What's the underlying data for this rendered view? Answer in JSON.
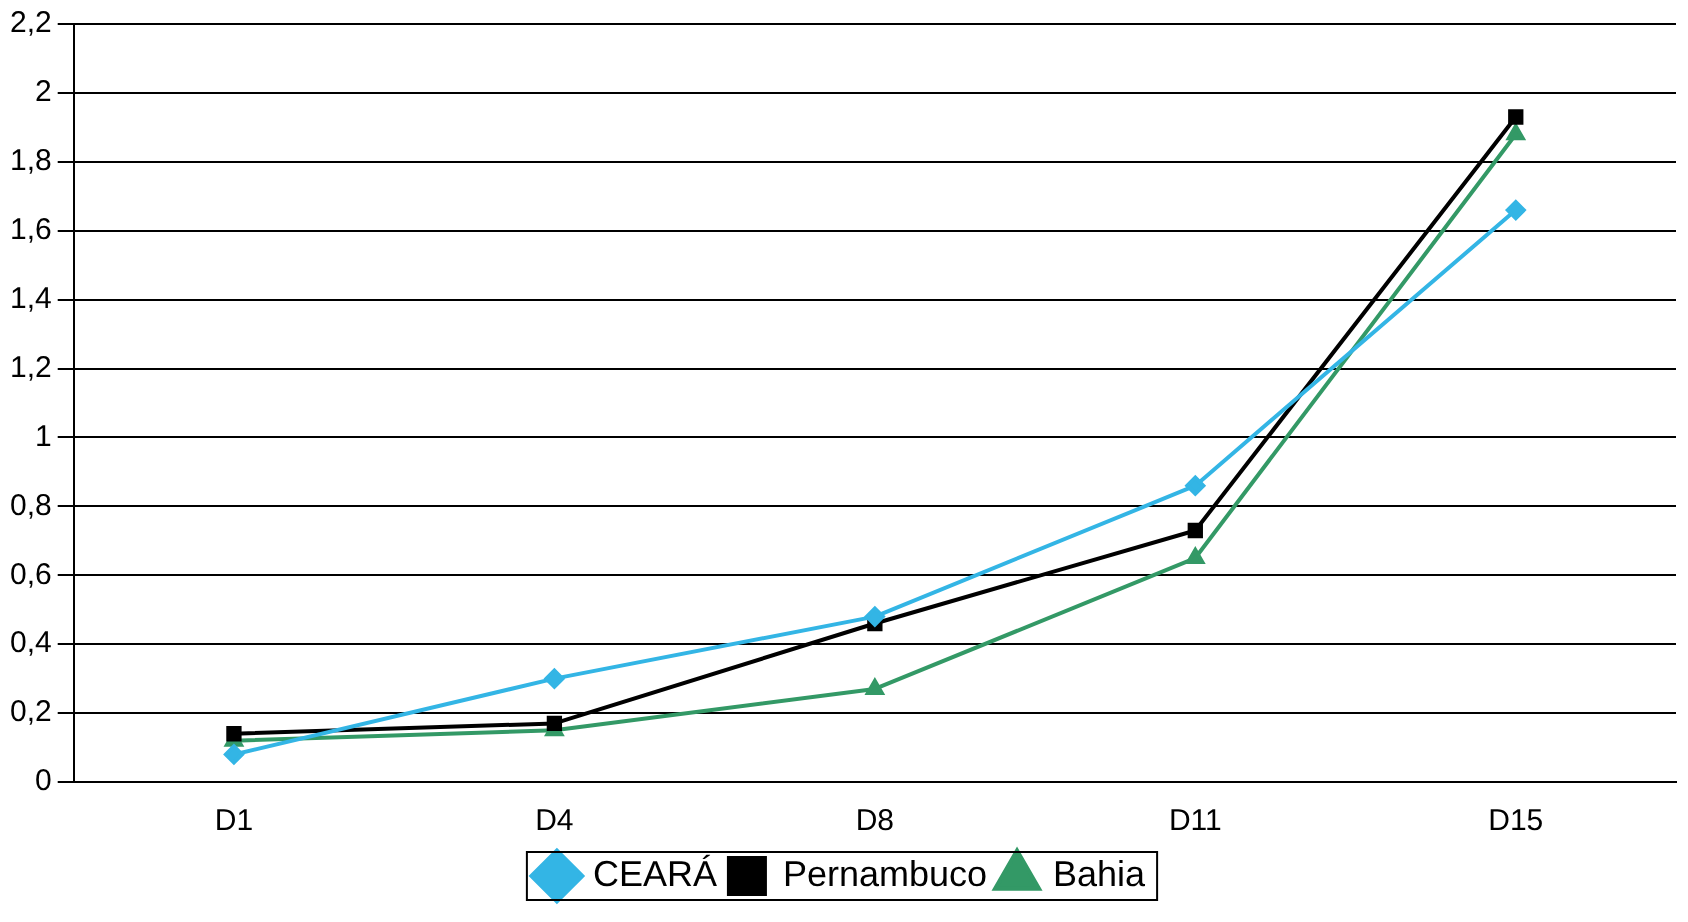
{
  "chart_data": {
    "type": "line",
    "categories": [
      "D1",
      "D4",
      "D8",
      "D11",
      "D15"
    ],
    "series": [
      {
        "name": "CEARÁ",
        "color": "#33b5e5",
        "marker": "diamond",
        "values": [
          0.08,
          0.3,
          0.48,
          0.86,
          1.66
        ]
      },
      {
        "name": "Pernambuco",
        "color": "#000000",
        "marker": "square",
        "values": [
          0.14,
          0.17,
          0.46,
          0.73,
          1.93
        ]
      },
      {
        "name": "Bahia",
        "color": "#339966",
        "marker": "triangle",
        "values": [
          0.12,
          0.15,
          0.27,
          0.65,
          1.88
        ]
      }
    ],
    "ylim": [
      0,
      2.2
    ],
    "yticks": [
      {
        "value": 0,
        "label": "0"
      },
      {
        "value": 0.2,
        "label": "0,2"
      },
      {
        "value": 0.4,
        "label": "0,4"
      },
      {
        "value": 0.6,
        "label": "0,6"
      },
      {
        "value": 0.8,
        "label": "0,8"
      },
      {
        "value": 1,
        "label": "1"
      },
      {
        "value": 1.2,
        "label": "1,2"
      },
      {
        "value": 1.4,
        "label": "1,4"
      },
      {
        "value": 1.6,
        "label": "1,6"
      },
      {
        "value": 1.8,
        "label": "1,8"
      },
      {
        "value": 2,
        "label": "2"
      },
      {
        "value": 2.2,
        "label": "2,2"
      }
    ],
    "grid": "y",
    "legend": "bottom",
    "line_style": "solid"
  }
}
